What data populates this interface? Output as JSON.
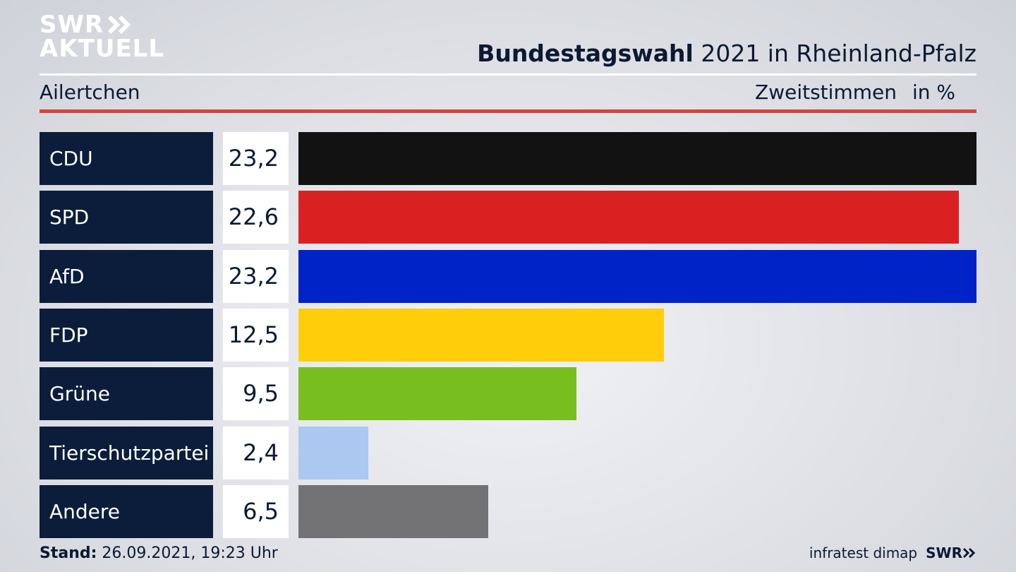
{
  "logo": {
    "line1": "SWR",
    "line2": "AKTUELL"
  },
  "header": {
    "title_bold": "Bundestagswahl",
    "title_rest": "2021 in Rheinland-Pfalz",
    "region": "Ailertchen",
    "measure": "Zweitstimmen",
    "unit": "in %"
  },
  "chart_data": {
    "type": "bar",
    "orientation": "horizontal",
    "title": "Bundestagswahl 2021 in Rheinland-Pfalz",
    "subtitle": "Ailertchen",
    "categories": [
      "CDU",
      "SPD",
      "AfD",
      "FDP",
      "Grüne",
      "Tierschutzpartei",
      "Andere"
    ],
    "values": [
      23.2,
      22.6,
      23.2,
      12.5,
      9.5,
      2.4,
      6.5
    ],
    "value_labels": [
      "23,2",
      "22,6",
      "23,2",
      "12,5",
      "9,5",
      "2,4",
      "6,5"
    ],
    "colors": [
      "#121212",
      "#d92122",
      "#0023c8",
      "#ffcd0a",
      "#78be1e",
      "#aac8f0",
      "#727274"
    ],
    "xlim": [
      0,
      23.2
    ],
    "unit": "in %",
    "legend": "none",
    "grid": false
  },
  "footer": {
    "stand_label": "Stand:",
    "stand_value": "26.09.2021, 19:23 Uhr",
    "source": "infratest dimap",
    "source_logo": "SWR"
  }
}
